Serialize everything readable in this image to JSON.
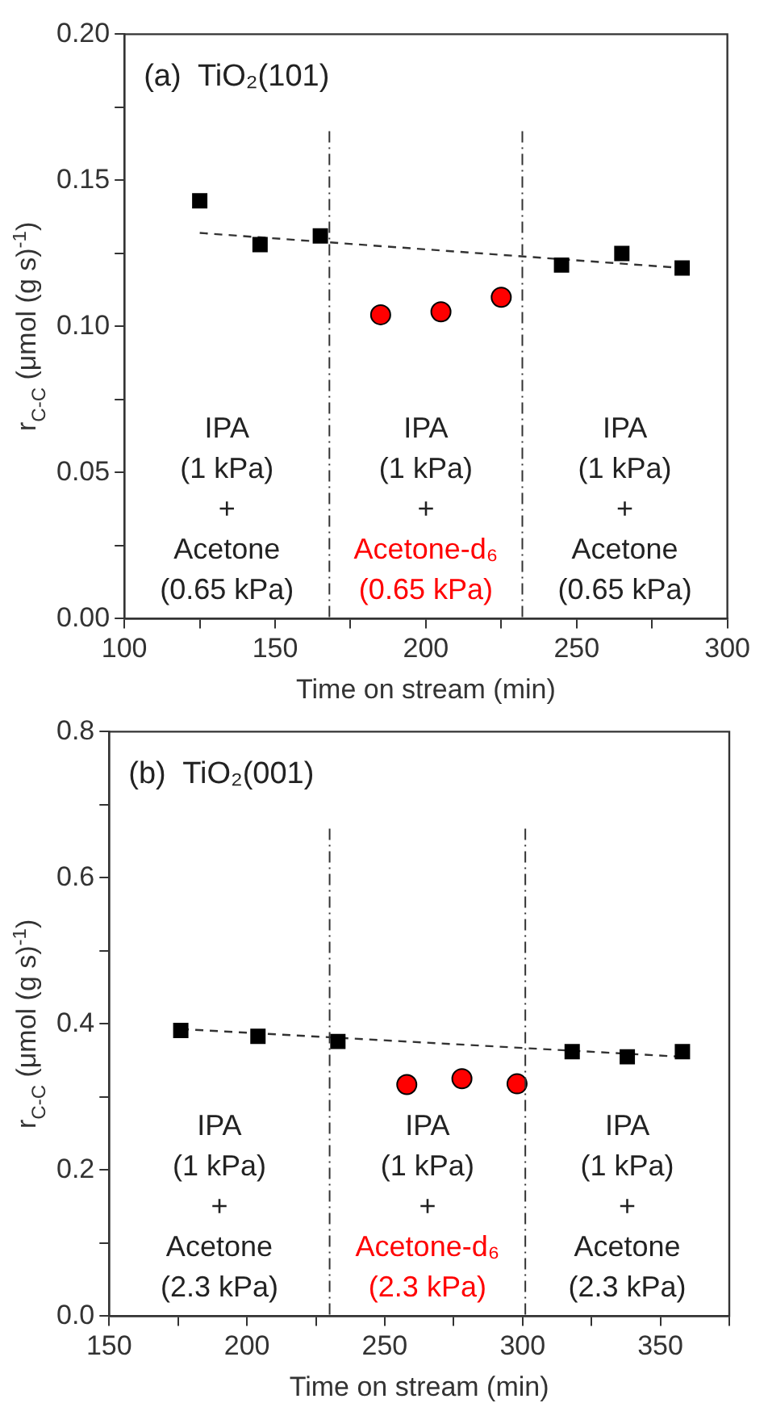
{
  "chart_data": [
    {
      "type": "scatter",
      "title": "(a)  TiO₂(101)",
      "xlabel": "Time on stream (min)",
      "ylabel": "r$_{C-C}$ (μmol (g s)$^{-1}$)",
      "xlim": [
        100,
        300
      ],
      "xticks": [
        100,
        {
          "value": 125,
          "label": null
        },
        150,
        {
          "value": 175,
          "label": null
        },
        200,
        {
          "value": 225,
          "label": null
        },
        250,
        {
          "value": 275,
          "label": null
        },
        300
      ],
      "ylim": [
        0,
        0.2
      ],
      "yticks": [
        "0.00",
        {
          "value": 0.025,
          "label": null
        },
        {
          "value": 0.05,
          "label": "0.05"
        },
        {
          "value": 0.075,
          "label": null
        },
        {
          "value": 0.1,
          "label": "0.10"
        },
        {
          "value": 0.125,
          "label": null
        },
        {
          "value": 0.15,
          "label": "0.15"
        },
        {
          "value": 0.175,
          "label": null
        },
        {
          "value": 0.2,
          "label": "0.20"
        }
      ],
      "grid": false,
      "legend": false,
      "series": [
        {
          "type": "scatter",
          "marker": "square",
          "color": "#000000",
          "x": [
            125,
            145,
            165,
            245,
            265,
            285
          ],
          "values": [
            0.143,
            0.128,
            0.131,
            0.121,
            0.125,
            0.12
          ]
        },
        {
          "type": "scatter",
          "marker": "circle",
          "color": "#ff0000",
          "x": [
            185,
            205,
            225
          ],
          "values": [
            0.104,
            0.105,
            0.11
          ]
        },
        {
          "type": "line",
          "marker": "none",
          "line_style": "dashed",
          "color": "#333333",
          "x": [
            125,
            285
          ],
          "values": [
            0.132,
            0.12
          ]
        }
      ],
      "ref_lines": [
        {
          "axis": "x",
          "value": 168,
          "line_style": "dashdot",
          "color": "#333333"
        },
        {
          "axis": "x",
          "value": 232,
          "line_style": "dashdot",
          "color": "#333333"
        }
      ],
      "annotations": [
        "IPA\n(1 kPa)\n+\nAcetone\n(0.65 kPa)",
        "IPA\n(1 kPa)\n+",
        "Acetone-d₆\n(0.65 kPa)",
        "IPA\n(1 kPa)\n+\nAcetone\n(0.65 kPa)"
      ]
    },
    {
      "type": "scatter",
      "title": "(b)  TiO₂(001)",
      "xlabel": "Time on stream (min)",
      "ylabel": "r$_{C-C}$ (μmol (g s)$^{-1}$)",
      "xlim": [
        150,
        375
      ],
      "xticks": [
        150,
        {
          "value": 175,
          "label": null
        },
        200,
        {
          "value": 225,
          "label": null
        },
        250,
        {
          "value": 275,
          "label": null
        },
        300,
        {
          "value": 325,
          "label": null
        },
        350,
        {
          "value": 375,
          "label": null
        }
      ],
      "ylim": [
        0,
        0.8
      ],
      "yticks": [
        "0.0",
        {
          "value": 0.1,
          "label": null
        },
        {
          "value": 0.2,
          "label": "0.2"
        },
        {
          "value": 0.3,
          "label": null
        },
        {
          "value": 0.4,
          "label": "0.4"
        },
        {
          "value": 0.5,
          "label": null
        },
        {
          "value": 0.6,
          "label": "0.6"
        },
        {
          "value": 0.7,
          "label": null
        },
        {
          "value": 0.8,
          "label": "0.8"
        }
      ],
      "grid": false,
      "legend": false,
      "series": [
        {
          "type": "scatter",
          "marker": "square",
          "color": "#000000",
          "x": [
            176,
            204,
            233,
            318,
            338,
            358
          ],
          "values": [
            0.391,
            0.383,
            0.376,
            0.362,
            0.355,
            0.362
          ]
        },
        {
          "type": "scatter",
          "marker": "circle",
          "color": "#ff0000",
          "x": [
            258,
            278,
            298
          ],
          "values": [
            0.317,
            0.325,
            0.318
          ]
        },
        {
          "type": "line",
          "marker": "none",
          "line_style": "dashed",
          "color": "#333333",
          "x": [
            176,
            358
          ],
          "values": [
            0.393,
            0.355
          ]
        }
      ],
      "ref_lines": [
        {
          "axis": "x",
          "value": 230,
          "line_style": "dashdot",
          "color": "#333333"
        },
        {
          "axis": "x",
          "value": 301,
          "line_style": "dashdot",
          "color": "#333333"
        }
      ],
      "annotations": [
        "IPA\n(1 kPa)\n+\nAcetone\n(2.3 kPa)",
        "IPA\n(1 kPa)\n+",
        "Acetone-d₆\n(2.3 kPa)",
        "IPA\n(1 kPa)\n+\nAcetone\n(2.3 kPa)"
      ]
    }
  ]
}
